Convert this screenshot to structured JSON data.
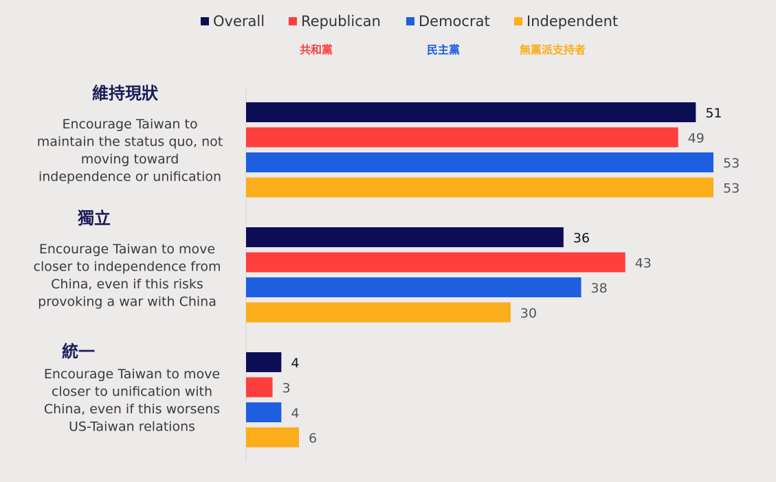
{
  "chart_data": {
    "type": "bar",
    "orientation": "horizontal",
    "title": "",
    "xlabel": "",
    "ylabel": "",
    "xlim": [
      0,
      53
    ],
    "grid": false,
    "legend_position": "top",
    "legend": [
      {
        "name": "Overall",
        "cn": "",
        "color": "#0d0d56"
      },
      {
        "name": "Republican",
        "cn": "共和黨",
        "color": "#ff3e3e"
      },
      {
        "name": "Democrat",
        "cn": "民主黨",
        "color": "#1d5fe0"
      },
      {
        "name": "Independent",
        "cn": "無黨派支持者",
        "color": "#fcad1b"
      }
    ],
    "categories": [
      {
        "title_cn": "維持現狀",
        "desc": [
          "Encourage Taiwan to",
          "maintain the status quo, not",
          "moving toward",
          "independence or unification"
        ]
      },
      {
        "title_cn": "獨立",
        "desc": [
          "Encourage Taiwan to move",
          "closer to independence from",
          "China, even if this risks",
          "provoking a war with China"
        ]
      },
      {
        "title_cn": "統一",
        "desc": [
          "Encourage Taiwan to move",
          "closer to unification with",
          "China, even if this worsens",
          "US-Taiwan relations"
        ]
      }
    ],
    "series": [
      {
        "name": "Overall",
        "values": [
          51,
          36,
          4
        ]
      },
      {
        "name": "Republican",
        "values": [
          49,
          43,
          3
        ]
      },
      {
        "name": "Democrat",
        "values": [
          53,
          38,
          4
        ]
      },
      {
        "name": "Independent",
        "values": [
          53,
          30,
          6
        ]
      }
    ]
  }
}
